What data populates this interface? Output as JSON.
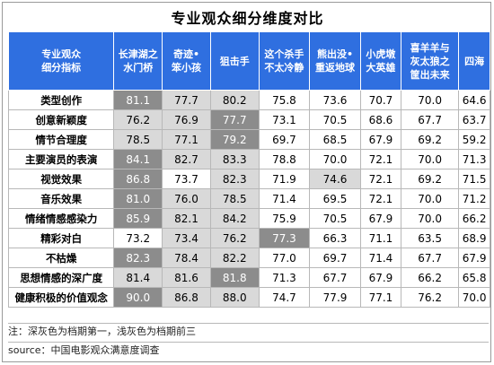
{
  "title": "专业观众细分维度对比",
  "note": "注：深灰色为档期第一，浅灰色为档期前三",
  "source": "source：中国电影观众满意度调查",
  "colors": {
    "header_bg": "#2f6fe0",
    "rank_first": "#8c8c8c",
    "rank_top3": "#d9d9d9"
  },
  "chart_data": {
    "type": "table",
    "corner_header": [
      "专业观众",
      "细分指标"
    ],
    "columns": [
      [
        "长津湖之",
        "水门桥"
      ],
      [
        "奇迹•",
        "笨小孩"
      ],
      [
        "狙击手"
      ],
      [
        "这个杀手",
        "不太冷静"
      ],
      [
        "熊出没•",
        "重返地球"
      ],
      [
        "小虎墩",
        "大英雄"
      ],
      [
        "喜羊羊与",
        "灰太狼之",
        "筐出未来"
      ],
      [
        "四海"
      ]
    ],
    "rows": [
      {
        "label": "类型创作",
        "values": [
          "81.1",
          "77.7",
          "80.2",
          "75.8",
          "73.6",
          "70.7",
          "70.0",
          "64.6"
        ],
        "highlight": [
          "dark",
          "light",
          "light",
          "",
          "",
          "",
          "",
          ""
        ]
      },
      {
        "label": "创意新颖度",
        "values": [
          "76.2",
          "76.9",
          "77.7",
          "73.1",
          "70.5",
          "68.6",
          "67.7",
          "63.7"
        ],
        "highlight": [
          "light",
          "light",
          "dark",
          "",
          "",
          "",
          "",
          ""
        ]
      },
      {
        "label": "情节合理度",
        "values": [
          "78.5",
          "77.1",
          "79.2",
          "69.7",
          "68.5",
          "67.9",
          "69.2",
          "59.2"
        ],
        "highlight": [
          "light",
          "light",
          "dark",
          "",
          "",
          "",
          "",
          ""
        ]
      },
      {
        "label": "主要演员的表演",
        "values": [
          "84.1",
          "82.7",
          "83.3",
          "78.8",
          "70.0",
          "72.1",
          "70.0",
          "71.3"
        ],
        "highlight": [
          "dark",
          "light",
          "light",
          "",
          "",
          "",
          "",
          ""
        ]
      },
      {
        "label": "视觉效果",
        "values": [
          "86.8",
          "73.7",
          "82.3",
          "71.9",
          "74.6",
          "72.1",
          "69.2",
          "71.5"
        ],
        "highlight": [
          "dark",
          "",
          "light",
          "",
          "light",
          "",
          "",
          ""
        ]
      },
      {
        "label": "音乐效果",
        "values": [
          "81.0",
          "76.0",
          "78.5",
          "71.4",
          "69.5",
          "72.1",
          "70.0",
          "71.2"
        ],
        "highlight": [
          "dark",
          "light",
          "light",
          "",
          "",
          "",
          "",
          ""
        ]
      },
      {
        "label": "情绪情感感染力",
        "values": [
          "85.9",
          "82.1",
          "84.2",
          "75.9",
          "70.5",
          "67.9",
          "70.0",
          "66.2"
        ],
        "highlight": [
          "dark",
          "light",
          "light",
          "",
          "",
          "",
          "",
          ""
        ]
      },
      {
        "label": "精彩对白",
        "values": [
          "73.2",
          "73.4",
          "76.2",
          "77.3",
          "66.3",
          "71.1",
          "63.5",
          "68.9"
        ],
        "highlight": [
          "",
          "light",
          "light",
          "dark",
          "",
          "",
          "",
          ""
        ]
      },
      {
        "label": "不枯燥",
        "values": [
          "82.3",
          "78.4",
          "82.2",
          "77.0",
          "69.7",
          "71.4",
          "67.7",
          "67.9"
        ],
        "highlight": [
          "dark",
          "light",
          "light",
          "",
          "",
          "",
          "",
          ""
        ]
      },
      {
        "label": "思想情感的深广度",
        "values": [
          "81.4",
          "81.6",
          "81.8",
          "71.3",
          "67.7",
          "67.9",
          "66.2",
          "65.8"
        ],
        "highlight": [
          "light",
          "light",
          "dark",
          "",
          "",
          "",
          "",
          ""
        ]
      },
      {
        "label": "健康积极的价值观念",
        "values": [
          "90.0",
          "86.8",
          "88.0",
          "74.7",
          "77.9",
          "77.1",
          "76.2",
          "70.0"
        ],
        "highlight": [
          "dark",
          "light",
          "light",
          "",
          "",
          "",
          "",
          ""
        ]
      }
    ]
  }
}
